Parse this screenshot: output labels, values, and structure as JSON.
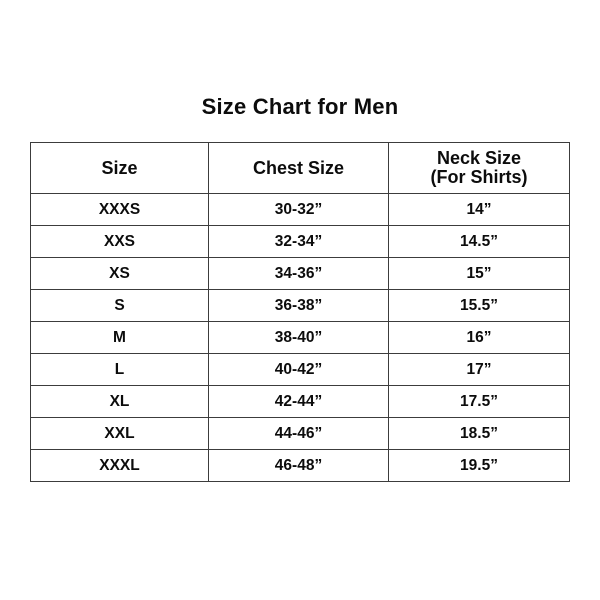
{
  "title": "Size Chart for Men",
  "colors": {
    "background": "#ffffff",
    "text": "#0c0c0c",
    "table_border": "#3c3c3c"
  },
  "table": {
    "header": {
      "col1": "Size",
      "col2": "Chest Size",
      "col3_line1": "Neck Size",
      "col3_line2": "(For Shirts)"
    },
    "rows": [
      {
        "size": "XXXS",
        "chest": "30-32”",
        "neck": "14”"
      },
      {
        "size": "XXS",
        "chest": "32-34”",
        "neck": "14.5”"
      },
      {
        "size": "XS",
        "chest": "34-36”",
        "neck": "15”"
      },
      {
        "size": "S",
        "chest": "36-38”",
        "neck": "15.5”"
      },
      {
        "size": "M",
        "chest": "38-40”",
        "neck": "16”"
      },
      {
        "size": "L",
        "chest": "40-42”",
        "neck": "17”"
      },
      {
        "size": "XL",
        "chest": "42-44”",
        "neck": "17.5”"
      },
      {
        "size": "XXL",
        "chest": "44-46”",
        "neck": "18.5”"
      },
      {
        "size": "XXXL",
        "chest": "46-48”",
        "neck": "19.5”"
      }
    ]
  },
  "chart_data": {
    "type": "table",
    "title": "Size Chart for Men",
    "columns": [
      "Size",
      "Chest Size",
      "Neck Size (For Shirts)"
    ],
    "rows": [
      [
        "XXXS",
        "30-32”",
        "14”"
      ],
      [
        "XXS",
        "32-34”",
        "14.5”"
      ],
      [
        "XS",
        "34-36”",
        "15”"
      ],
      [
        "S",
        "36-38”",
        "15.5”"
      ],
      [
        "M",
        "38-40”",
        "16”"
      ],
      [
        "L",
        "40-42”",
        "17”"
      ],
      [
        "XL",
        "42-44”",
        "17.5”"
      ],
      [
        "XXL",
        "44-46”",
        "18.5”"
      ],
      [
        "XXXL",
        "46-48”",
        "19.5”"
      ]
    ]
  }
}
